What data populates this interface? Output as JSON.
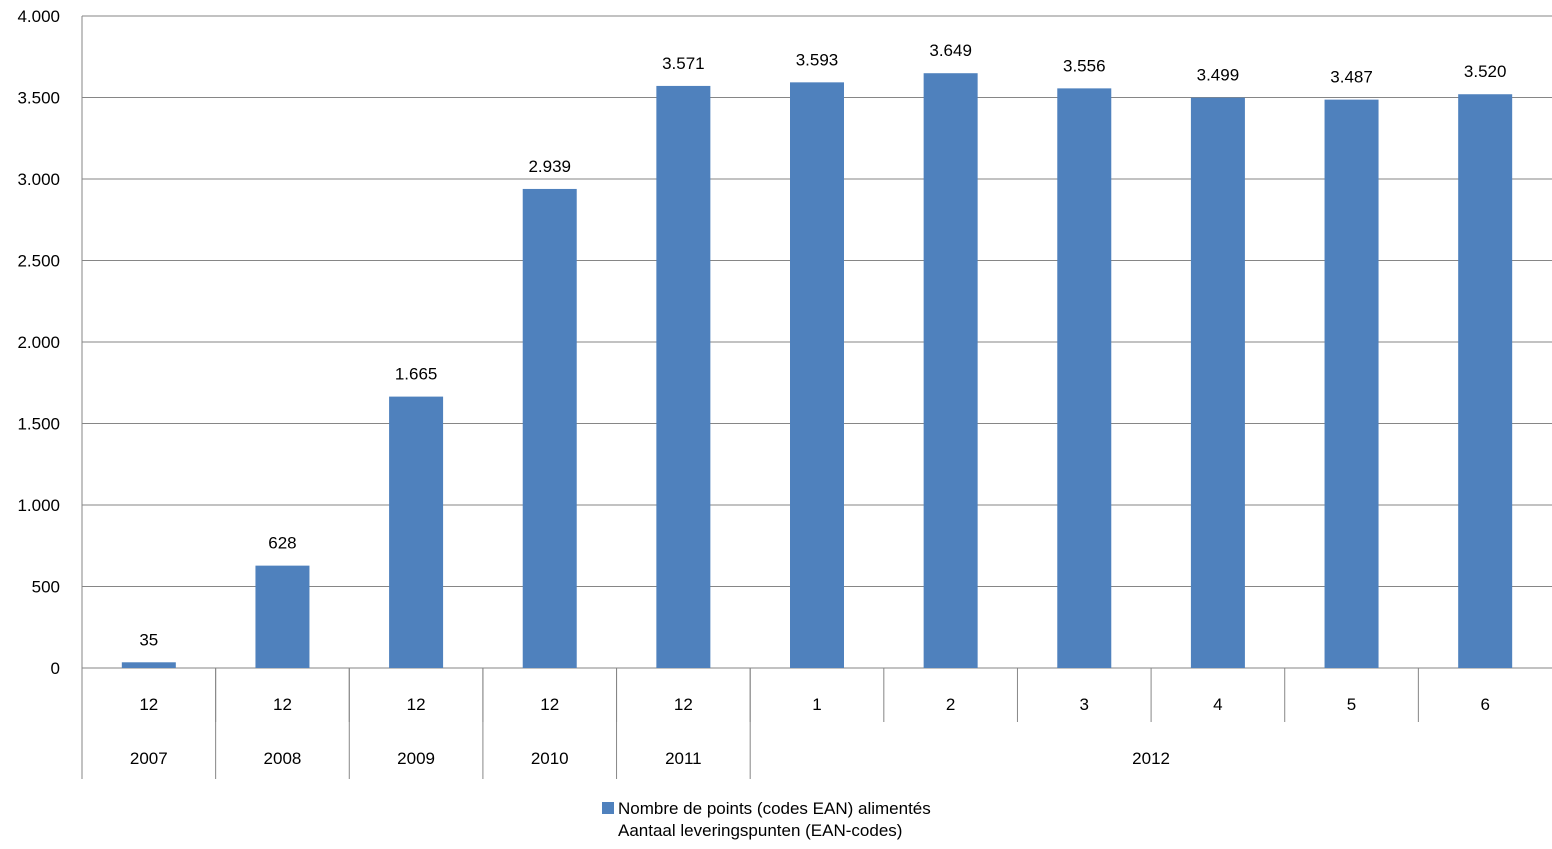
{
  "chart_data": {
    "type": "bar",
    "months": [
      "12",
      "12",
      "12",
      "12",
      "12",
      "1",
      "2",
      "3",
      "4",
      "5",
      "6"
    ],
    "year_groups": [
      {
        "label": "2007",
        "span": 1
      },
      {
        "label": "2008",
        "span": 1
      },
      {
        "label": "2009",
        "span": 1
      },
      {
        "label": "2010",
        "span": 1
      },
      {
        "label": "2011",
        "span": 1
      },
      {
        "label": "2012",
        "span": 6
      }
    ],
    "values": [
      35,
      628,
      1665,
      2939,
      3571,
      3593,
      3649,
      3556,
      3499,
      3487,
      3520
    ],
    "data_labels": [
      "35",
      "628",
      "1.665",
      "2.939",
      "3.571",
      "3.593",
      "3.649",
      "3.556",
      "3.499",
      "3.487",
      "3.520"
    ],
    "ylim": [
      0,
      4000
    ],
    "yticks": [
      0,
      500,
      1000,
      1500,
      2000,
      2500,
      3000,
      3500,
      4000
    ],
    "ytick_labels": [
      "0",
      "500",
      "1.000",
      "1.500",
      "2.000",
      "2.500",
      "3.000",
      "3.500",
      "4.000"
    ],
    "grid": true,
    "legend_position": "bottom",
    "bar_color": "#4f81bd",
    "series": [
      {
        "name": "Nombre de points (codes EAN) alimentés",
        "name_line2": "Aantaal leveringspunten (EAN-codes)"
      }
    ]
  }
}
